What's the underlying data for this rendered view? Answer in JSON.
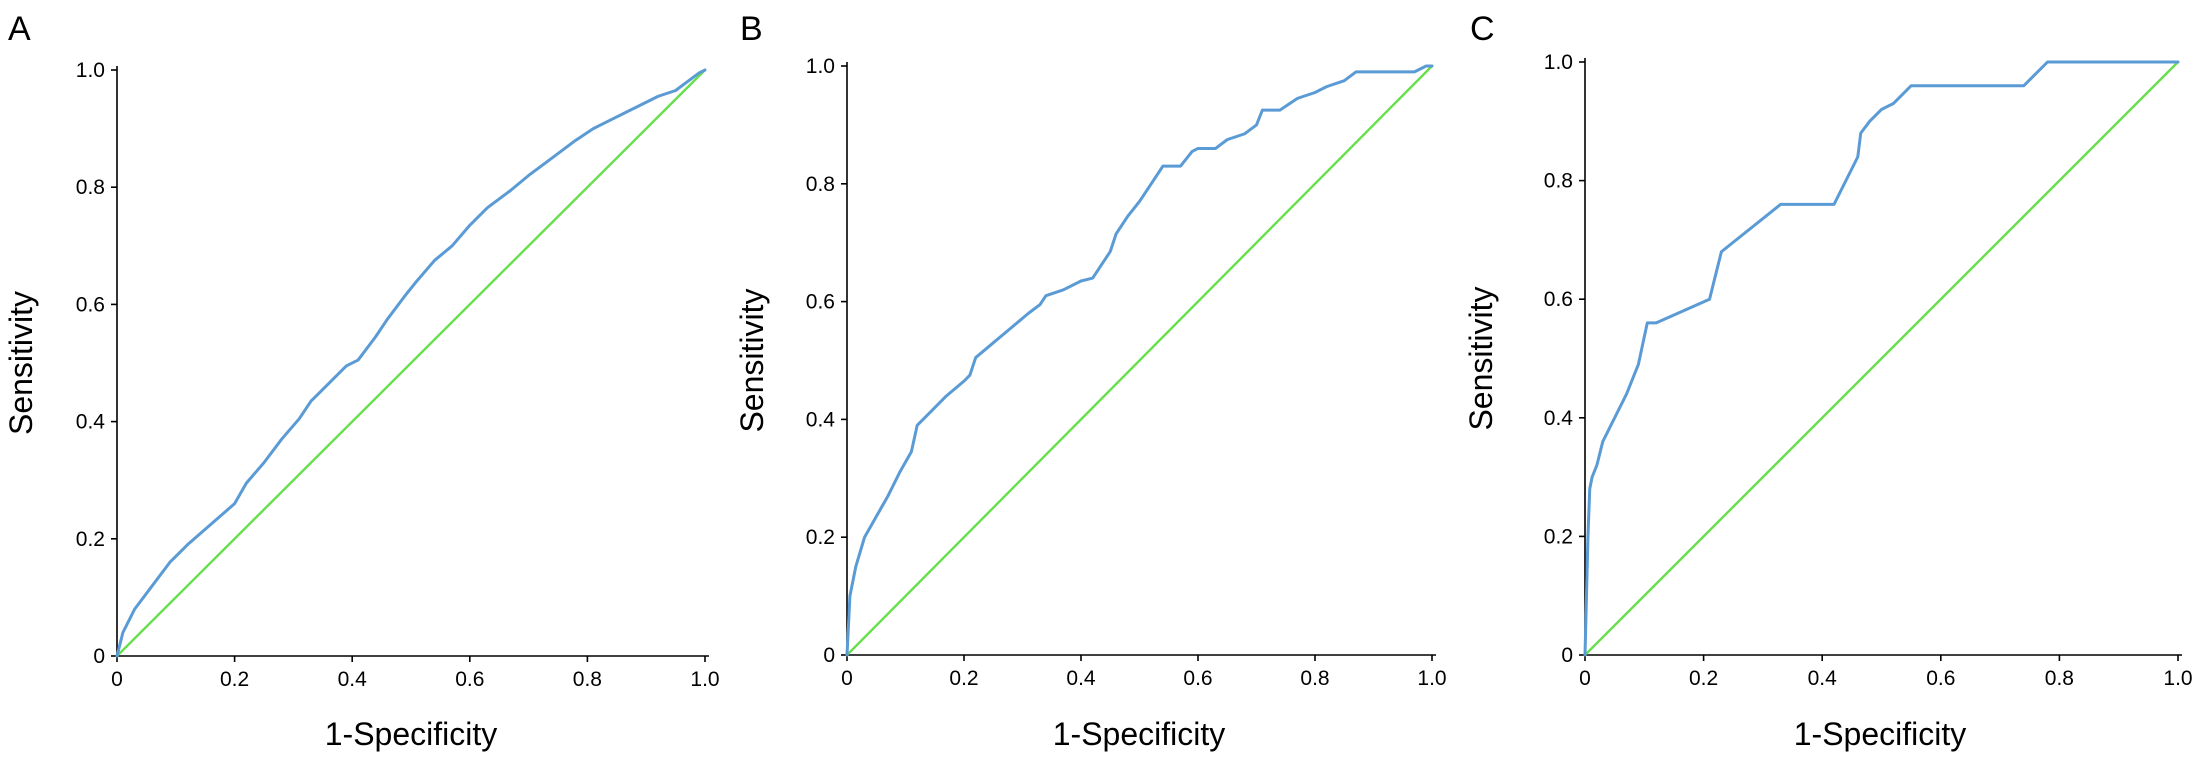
{
  "colors": {
    "roc": "#5b9bd5",
    "reference": "#66e04a",
    "axis": "#000000",
    "end_segment": "#333333"
  },
  "chart_data": [
    {
      "type": "line",
      "panel_label": "A",
      "xlabel": "1-Specificity",
      "ylabel": "Sensitivity",
      "xlim": [
        0,
        1
      ],
      "ylim": [
        0,
        1
      ],
      "x_ticks": [
        "0",
        "0.2",
        "0.4",
        "0.6",
        "0.8",
        "1.0"
      ],
      "y_ticks": [
        "0",
        "0.2",
        "0.4",
        "0.6",
        "0.8",
        "1.0"
      ],
      "grid": false,
      "series": [
        {
          "role": "roc",
          "x": [
            0,
            0.01,
            0.03,
            0.06,
            0.09,
            0.12,
            0.16,
            0.2,
            0.22,
            0.25,
            0.28,
            0.31,
            0.33,
            0.36,
            0.39,
            0.41,
            0.44,
            0.46,
            0.49,
            0.51,
            0.54,
            0.57,
            0.6,
            0.63,
            0.67,
            0.7,
            0.74,
            0.78,
            0.81,
            0.84,
            0.87,
            0.9,
            0.92,
            0.95,
            0.97,
            0.99,
            1.0
          ],
          "y": [
            0,
            0.04,
            0.08,
            0.12,
            0.16,
            0.19,
            0.225,
            0.26,
            0.295,
            0.33,
            0.37,
            0.405,
            0.435,
            0.465,
            0.495,
            0.505,
            0.545,
            0.575,
            0.615,
            0.64,
            0.675,
            0.7,
            0.735,
            0.765,
            0.795,
            0.82,
            0.85,
            0.88,
            0.9,
            0.915,
            0.93,
            0.945,
            0.955,
            0.965,
            0.98,
            0.995,
            1.0
          ]
        },
        {
          "role": "reference",
          "x": [
            0,
            1
          ],
          "y": [
            0,
            1
          ]
        }
      ]
    },
    {
      "type": "line",
      "panel_label": "B",
      "xlabel": "1-Specificity",
      "ylabel": "Sensitivity",
      "xlim": [
        0,
        1
      ],
      "ylim": [
        0,
        1
      ],
      "x_ticks": [
        "0",
        "0.2",
        "0.4",
        "0.6",
        "0.8",
        "1.0"
      ],
      "y_ticks": [
        "0",
        "0.2",
        "0.4",
        "0.6",
        "0.8",
        "1.0"
      ],
      "grid": false,
      "series": [
        {
          "role": "roc",
          "x": [
            0,
            0.005,
            0.015,
            0.03,
            0.05,
            0.07,
            0.09,
            0.11,
            0.12,
            0.14,
            0.17,
            0.2,
            0.21,
            0.22,
            0.25,
            0.28,
            0.31,
            0.33,
            0.34,
            0.37,
            0.4,
            0.42,
            0.45,
            0.46,
            0.48,
            0.5,
            0.52,
            0.54,
            0.57,
            0.59,
            0.6,
            0.63,
            0.65,
            0.68,
            0.7,
            0.71,
            0.74,
            0.77,
            0.8,
            0.82,
            0.85,
            0.87,
            0.97,
            0.99,
            1.0
          ],
          "y": [
            0,
            0.1,
            0.15,
            0.2,
            0.235,
            0.27,
            0.31,
            0.345,
            0.39,
            0.41,
            0.44,
            0.465,
            0.475,
            0.505,
            0.53,
            0.555,
            0.58,
            0.595,
            0.61,
            0.62,
            0.635,
            0.64,
            0.685,
            0.715,
            0.745,
            0.77,
            0.8,
            0.83,
            0.83,
            0.855,
            0.86,
            0.86,
            0.875,
            0.885,
            0.9,
            0.925,
            0.925,
            0.945,
            0.955,
            0.965,
            0.975,
            0.99,
            0.99,
            1.0,
            1.0
          ]
        },
        {
          "role": "reference",
          "x": [
            0,
            1
          ],
          "y": [
            0,
            1
          ]
        }
      ]
    },
    {
      "type": "line",
      "panel_label": "C",
      "xlabel": "1-Specificity",
      "ylabel": "Sensitivity",
      "xlim": [
        0,
        1
      ],
      "ylim": [
        0,
        1
      ],
      "x_ticks": [
        "0",
        "0.2",
        "0.4",
        "0.6",
        "0.8",
        "1.0"
      ],
      "y_ticks": [
        "0",
        "0.2",
        "0.4",
        "0.6",
        "0.8",
        "1.0"
      ],
      "grid": false,
      "series": [
        {
          "role": "roc",
          "x": [
            0,
            0.005,
            0.008,
            0.012,
            0.02,
            0.03,
            0.05,
            0.07,
            0.09,
            0.105,
            0.12,
            0.21,
            0.23,
            0.33,
            0.42,
            0.46,
            0.465,
            0.48,
            0.5,
            0.52,
            0.55,
            0.74,
            0.78,
            1.0
          ],
          "y": [
            0,
            0.2,
            0.28,
            0.3,
            0.32,
            0.36,
            0.4,
            0.44,
            0.49,
            0.56,
            0.56,
            0.6,
            0.68,
            0.76,
            0.76,
            0.84,
            0.88,
            0.9,
            0.92,
            0.93,
            0.96,
            0.96,
            1.0,
            1.0
          ]
        },
        {
          "role": "reference",
          "x": [
            0,
            1
          ],
          "y": [
            0,
            1
          ]
        }
      ]
    }
  ]
}
